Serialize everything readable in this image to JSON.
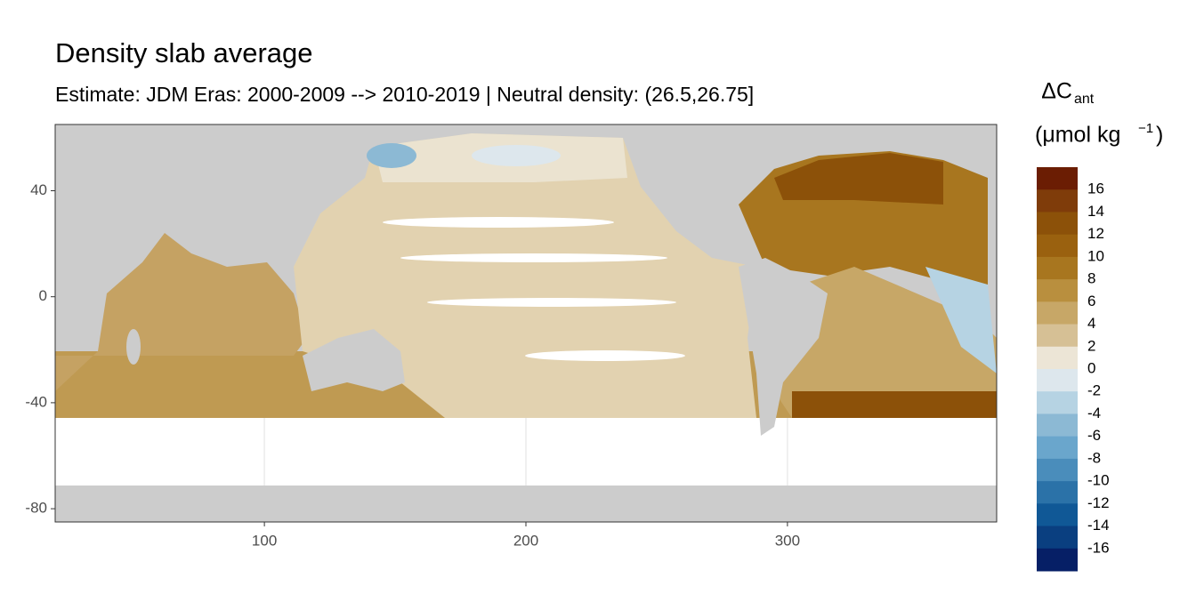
{
  "chart_data": {
    "type": "raster-map",
    "title": "Density slab average",
    "subtitle": "Estimate: JDM Eras: 2000-2009 --> 2010-2019 | Neutral density: (26.5,26.75]",
    "xlim": [
      20,
      380
    ],
    "ylim": [
      -85,
      65
    ],
    "xticks": [
      100,
      200,
      300
    ],
    "yticks": [
      -80,
      -40,
      0,
      40
    ],
    "grid": true,
    "legend": {
      "title": {
        "main": "ΔC",
        "sub": "ant",
        "unit_open": "(μmol kg",
        "unit_sup": "−1",
        "unit_close": ")"
      },
      "breaks": [
        16,
        14,
        12,
        10,
        8,
        6,
        4,
        2,
        0,
        -2,
        -4,
        -6,
        -8,
        -10,
        -12,
        -14,
        -16
      ],
      "colors": [
        "#6b1d03",
        "#7f3c0a",
        "#8c5109",
        "#9a610f",
        "#a8761f",
        "#b98f3e",
        "#c7a767",
        "#d6c095",
        "#ece5d6",
        "#dde7ed",
        "#b6d3e3",
        "#8cb9d4",
        "#6aa6cc",
        "#4a8dbb",
        "#2b72a8",
        "#105896",
        "#0a3f80",
        "#061f66"
      ]
    }
  }
}
